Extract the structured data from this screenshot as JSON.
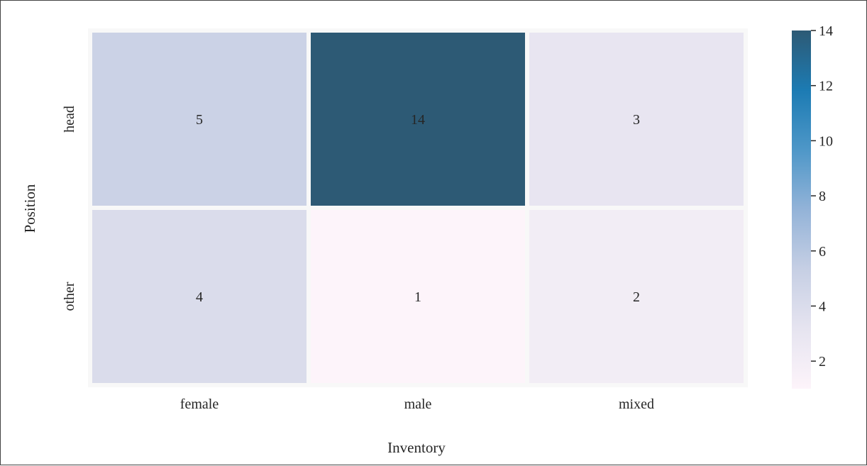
{
  "chart_data": {
    "type": "heatmap",
    "title": "",
    "xlabel": "Inventory",
    "ylabel": "Position",
    "x_categories": [
      "female",
      "male",
      "mixed"
    ],
    "y_categories": [
      "head",
      "other"
    ],
    "values": [
      [
        5,
        14,
        3
      ],
      [
        4,
        1,
        2
      ]
    ],
    "annotations": true,
    "colorbar": {
      "min": 1,
      "max": 14,
      "ticks": [
        2,
        4,
        6,
        8,
        10,
        12,
        14
      ],
      "tick_labels": [
        "2",
        "4",
        "6",
        "8",
        "10",
        "12",
        "14"
      ]
    },
    "colormap_stops": [
      "#fdf4fa",
      "#e6e4f0",
      "#c6cfe4",
      "#93b3d8",
      "#4e97c8",
      "#1c7bb3",
      "#2d5a75"
    ],
    "cell_separator_color": "#f8f8f8",
    "grid": false
  }
}
